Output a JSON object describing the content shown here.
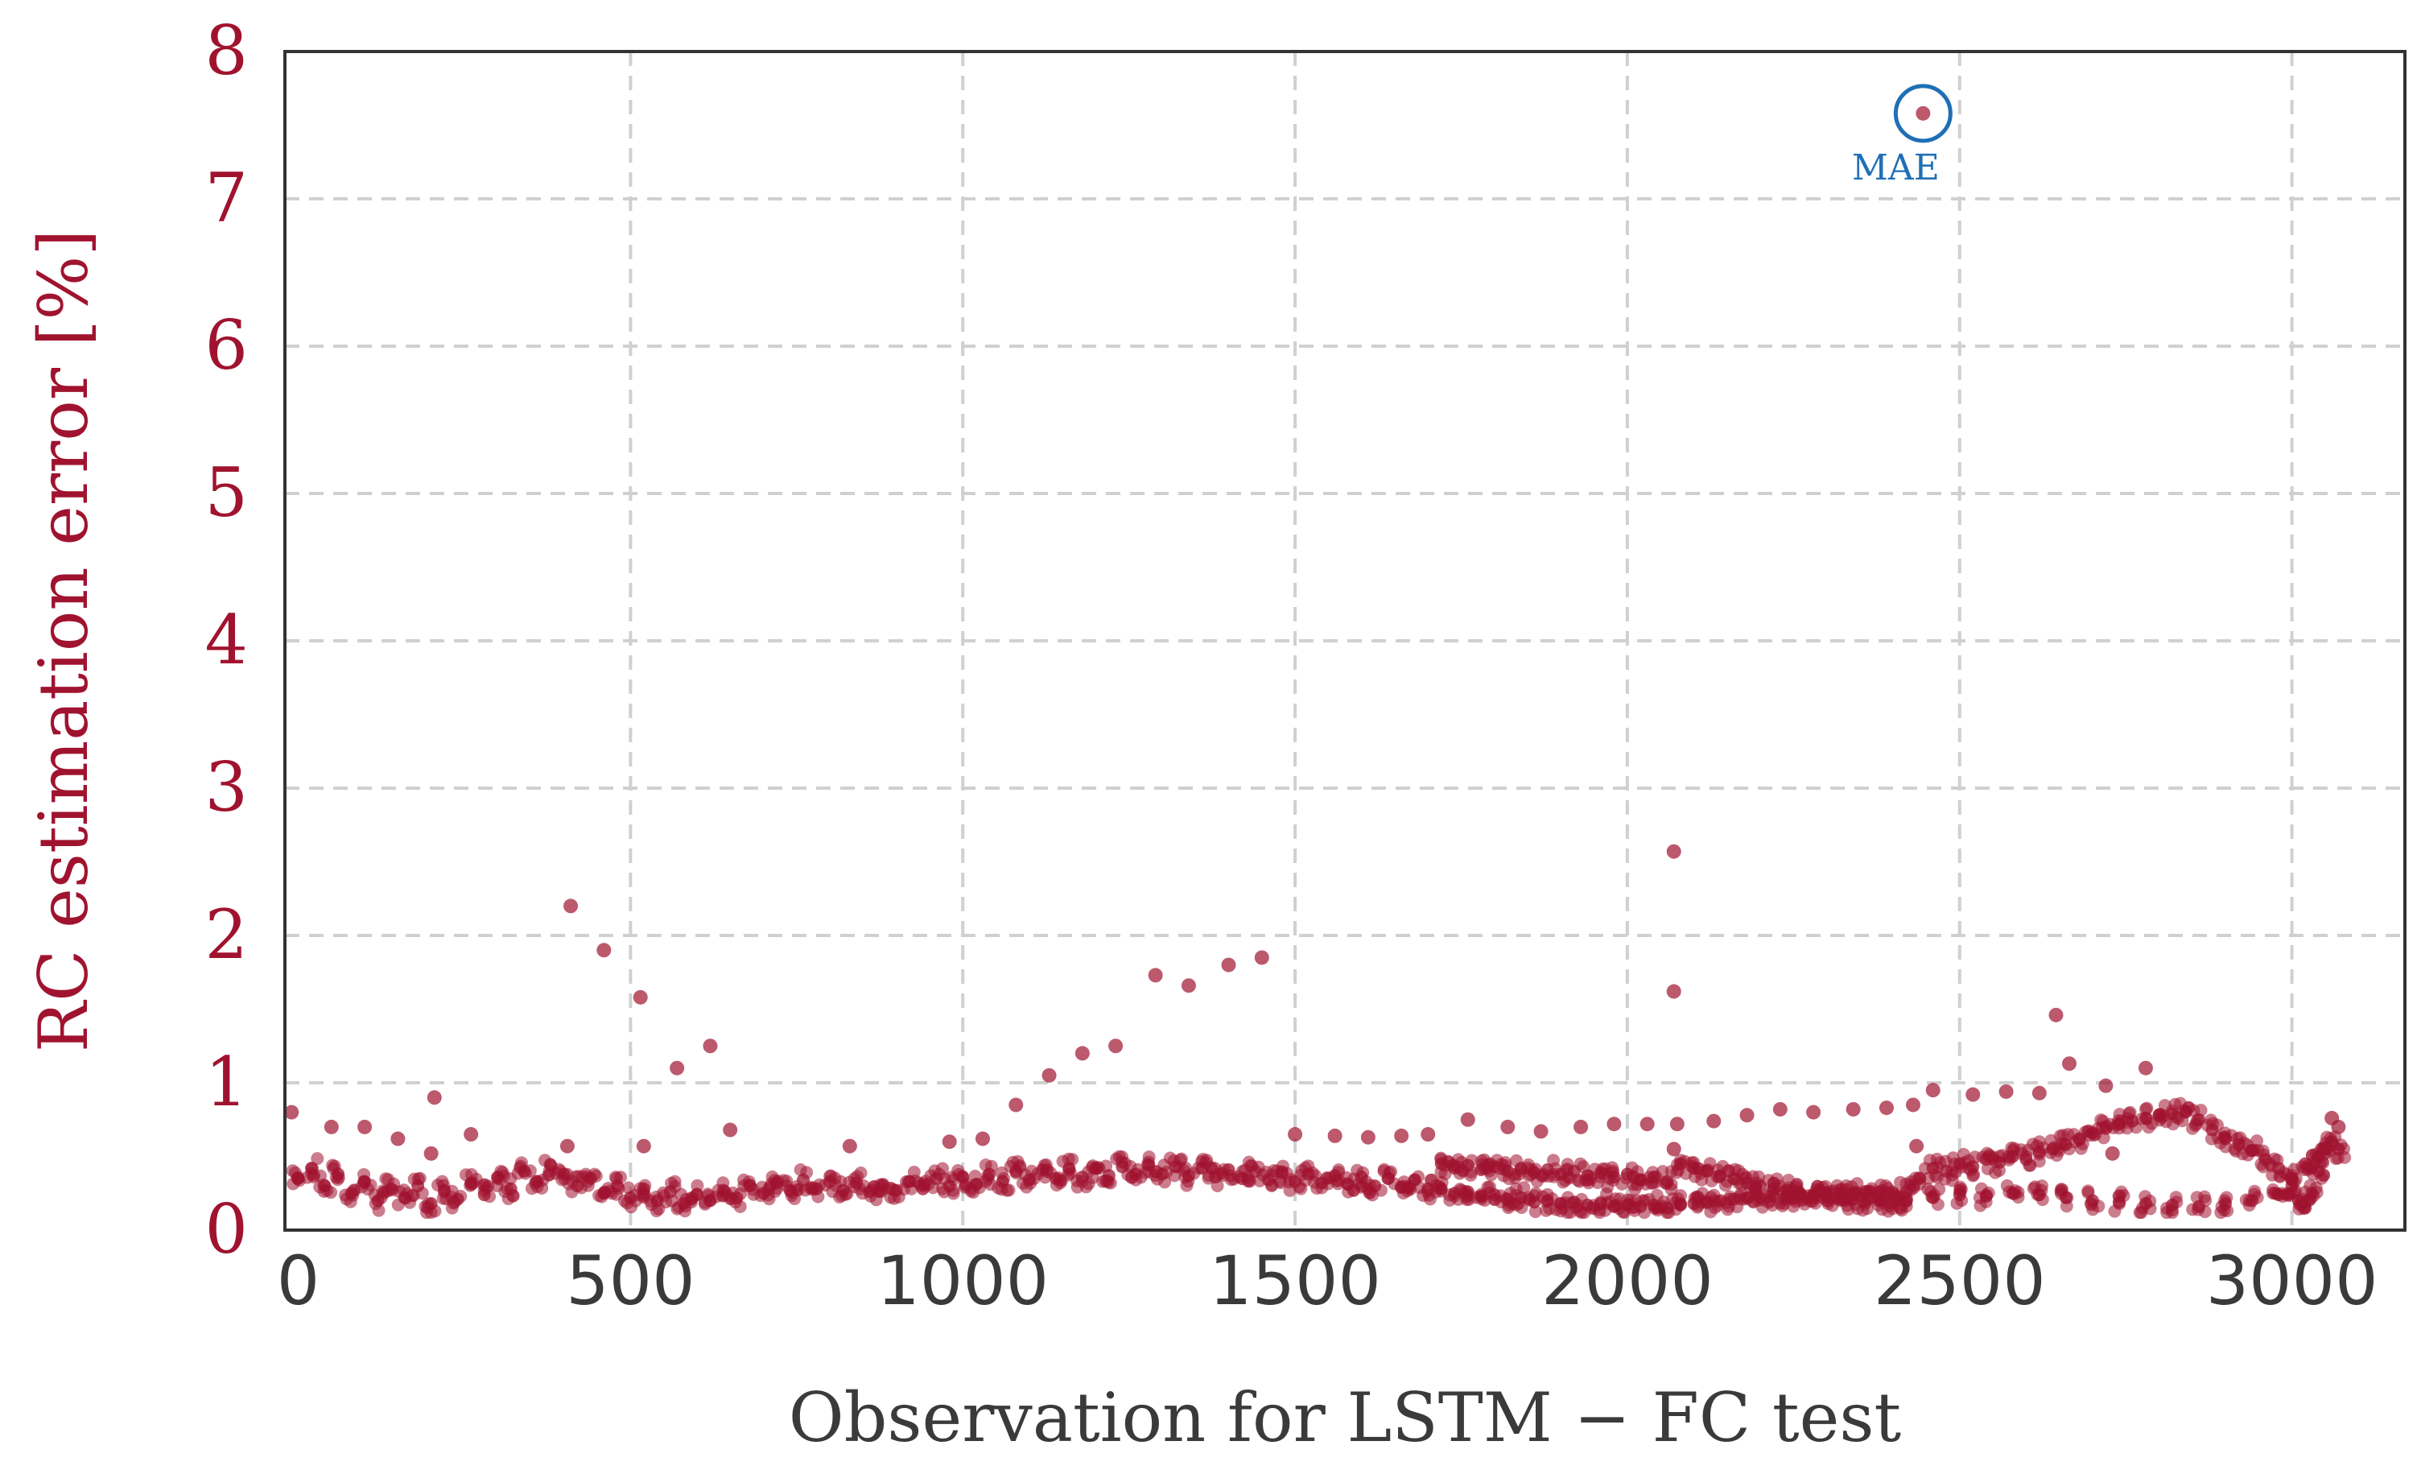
{
  "chart_data": {
    "type": "scatter",
    "title": "",
    "xlabel": "Observation for LSTM − FC test",
    "ylabel": "RC estimation error [%]",
    "xlim": [
      -20,
      3170
    ],
    "ylim": [
      0,
      8
    ],
    "xticks": [
      0,
      500,
      1000,
      1500,
      2000,
      2500,
      3000
    ],
    "yticks": [
      0,
      1,
      2,
      3,
      4,
      5,
      6,
      7,
      8
    ],
    "grid": true,
    "colors": {
      "points": "#a0132f",
      "axis_text_y": "#a0132f",
      "axis_text_x": "#3a3a3a",
      "annotation": "#1f6fb5",
      "grid": "#d0d0d0",
      "frame": "#333333"
    },
    "annotation": {
      "text": "MAE",
      "x": 2445,
      "y": 7.58
    },
    "series": [
      {
        "band_points": [
          [
            0,
            0.35
          ],
          [
            20,
            0.42
          ],
          [
            40,
            0.3
          ],
          [
            60,
            0.38
          ],
          [
            80,
            0.25
          ],
          [
            100,
            0.33
          ],
          [
            120,
            0.2
          ],
          [
            140,
            0.28
          ],
          [
            160,
            0.22
          ],
          [
            180,
            0.3
          ],
          [
            200,
            0.18
          ],
          [
            220,
            0.27
          ],
          [
            240,
            0.21
          ],
          [
            260,
            0.32
          ],
          [
            280,
            0.24
          ],
          [
            300,
            0.36
          ],
          [
            320,
            0.28
          ],
          [
            340,
            0.4
          ],
          [
            360,
            0.33
          ],
          [
            380,
            0.44
          ],
          [
            400,
            0.38
          ],
          [
            420,
            0.3
          ],
          [
            440,
            0.35
          ],
          [
            460,
            0.25
          ],
          [
            480,
            0.3
          ],
          [
            500,
            0.22
          ],
          [
            520,
            0.28
          ],
          [
            540,
            0.2
          ],
          [
            560,
            0.26
          ],
          [
            580,
            0.18
          ],
          [
            600,
            0.24
          ],
          [
            620,
            0.2
          ],
          [
            640,
            0.27
          ],
          [
            660,
            0.22
          ],
          [
            680,
            0.3
          ],
          [
            700,
            0.25
          ],
          [
            720,
            0.32
          ],
          [
            740,
            0.27
          ],
          [
            760,
            0.34
          ],
          [
            780,
            0.28
          ],
          [
            800,
            0.33
          ],
          [
            820,
            0.27
          ],
          [
            840,
            0.32
          ],
          [
            860,
            0.26
          ],
          [
            880,
            0.31
          ],
          [
            900,
            0.27
          ],
          [
            920,
            0.33
          ],
          [
            940,
            0.28
          ],
          [
            960,
            0.35
          ],
          [
            980,
            0.3
          ],
          [
            1000,
            0.36
          ],
          [
            1020,
            0.31
          ],
          [
            1040,
            0.38
          ],
          [
            1060,
            0.33
          ],
          [
            1080,
            0.4
          ],
          [
            1100,
            0.34
          ],
          [
            1120,
            0.41
          ],
          [
            1140,
            0.35
          ],
          [
            1160,
            0.42
          ],
          [
            1180,
            0.36
          ],
          [
            1200,
            0.42
          ],
          [
            1220,
            0.37
          ],
          [
            1240,
            0.43
          ],
          [
            1260,
            0.38
          ],
          [
            1280,
            0.44
          ],
          [
            1300,
            0.38
          ],
          [
            1320,
            0.43
          ],
          [
            1340,
            0.37
          ],
          [
            1360,
            0.42
          ],
          [
            1380,
            0.36
          ],
          [
            1400,
            0.41
          ],
          [
            1420,
            0.35
          ],
          [
            1440,
            0.4
          ],
          [
            1460,
            0.34
          ],
          [
            1480,
            0.39
          ],
          [
            1500,
            0.33
          ],
          [
            1520,
            0.38
          ],
          [
            1540,
            0.32
          ],
          [
            1560,
            0.37
          ],
          [
            1580,
            0.31
          ],
          [
            1600,
            0.36
          ],
          [
            1620,
            0.3
          ],
          [
            1640,
            0.35
          ],
          [
            1660,
            0.29
          ],
          [
            1680,
            0.34
          ],
          [
            1700,
            0.28
          ],
          [
            1720,
            0.45
          ],
          [
            1740,
            0.42
          ],
          [
            1760,
            0.44
          ],
          [
            1780,
            0.41
          ],
          [
            1800,
            0.43
          ],
          [
            1820,
            0.4
          ],
          [
            1840,
            0.42
          ],
          [
            1860,
            0.39
          ],
          [
            1880,
            0.41
          ],
          [
            1900,
            0.38
          ],
          [
            1920,
            0.4
          ],
          [
            1940,
            0.37
          ],
          [
            1960,
            0.39
          ],
          [
            1980,
            0.36
          ],
          [
            2000,
            0.38
          ],
          [
            2020,
            0.34
          ],
          [
            2040,
            0.36
          ],
          [
            2060,
            0.33
          ],
          [
            1720,
            0.28
          ],
          [
            1740,
            0.25
          ],
          [
            1760,
            0.26
          ],
          [
            1780,
            0.23
          ],
          [
            1800,
            0.24
          ],
          [
            1820,
            0.21
          ],
          [
            1840,
            0.22
          ],
          [
            1860,
            0.19
          ],
          [
            1880,
            0.2
          ],
          [
            1900,
            0.18
          ],
          [
            1920,
            0.19
          ],
          [
            1940,
            0.17
          ],
          [
            1960,
            0.18
          ],
          [
            1980,
            0.16
          ],
          [
            2000,
            0.17
          ],
          [
            2020,
            0.16
          ],
          [
            2040,
            0.17
          ],
          [
            2060,
            0.15
          ],
          [
            2080,
            0.45
          ],
          [
            2100,
            0.42
          ],
          [
            2120,
            0.4
          ],
          [
            2140,
            0.37
          ],
          [
            2160,
            0.35
          ],
          [
            2180,
            0.32
          ],
          [
            2200,
            0.3
          ],
          [
            2220,
            0.28
          ],
          [
            2240,
            0.27
          ],
          [
            2260,
            0.25
          ],
          [
            2280,
            0.24
          ],
          [
            2300,
            0.23
          ],
          [
            2320,
            0.22
          ],
          [
            2340,
            0.21
          ],
          [
            2360,
            0.2
          ],
          [
            2380,
            0.2
          ],
          [
            2400,
            0.19
          ],
          [
            2420,
            0.2
          ],
          [
            2080,
            0.17
          ],
          [
            2100,
            0.18
          ],
          [
            2120,
            0.19
          ],
          [
            2140,
            0.2
          ],
          [
            2160,
            0.21
          ],
          [
            2180,
            0.22
          ],
          [
            2200,
            0.22
          ],
          [
            2220,
            0.23
          ],
          [
            2240,
            0.23
          ],
          [
            2260,
            0.24
          ],
          [
            2280,
            0.24
          ],
          [
            2300,
            0.25
          ],
          [
            2320,
            0.25
          ],
          [
            2340,
            0.25
          ],
          [
            2360,
            0.26
          ],
          [
            2380,
            0.26
          ],
          [
            2400,
            0.25
          ],
          [
            2420,
            0.26
          ],
          [
            2440,
            0.35
          ],
          [
            2460,
            0.42
          ],
          [
            2480,
            0.4
          ],
          [
            2500,
            0.45
          ],
          [
            2520,
            0.43
          ],
          [
            2540,
            0.48
          ],
          [
            2560,
            0.46
          ],
          [
            2580,
            0.5
          ],
          [
            2600,
            0.48
          ],
          [
            2620,
            0.53
          ],
          [
            2640,
            0.55
          ],
          [
            2660,
            0.58
          ],
          [
            2680,
            0.62
          ],
          [
            2700,
            0.66
          ],
          [
            2720,
            0.69
          ],
          [
            2740,
            0.72
          ],
          [
            2760,
            0.74
          ],
          [
            2780,
            0.76
          ],
          [
            2800,
            0.78
          ],
          [
            2820,
            0.79
          ],
          [
            2840,
            0.8
          ],
          [
            2860,
            0.75
          ],
          [
            2880,
            0.68
          ],
          [
            2900,
            0.62
          ],
          [
            2920,
            0.58
          ],
          [
            2940,
            0.54
          ],
          [
            2960,
            0.48
          ],
          [
            2980,
            0.42
          ],
          [
            3000,
            0.35
          ],
          [
            2460,
            0.22
          ],
          [
            2500,
            0.24
          ],
          [
            2540,
            0.23
          ],
          [
            2580,
            0.25
          ],
          [
            2620,
            0.24
          ],
          [
            2660,
            0.22
          ],
          [
            2700,
            0.2
          ],
          [
            2740,
            0.19
          ],
          [
            2780,
            0.18
          ],
          [
            2820,
            0.17
          ],
          [
            2860,
            0.16
          ],
          [
            2900,
            0.18
          ],
          [
            2940,
            0.2
          ],
          [
            2980,
            0.24
          ],
          [
            3000,
            0.3
          ],
          [
            3010,
            0.2
          ],
          [
            3020,
            0.15
          ],
          [
            3030,
            0.25
          ],
          [
            3040,
            0.4
          ],
          [
            3050,
            0.52
          ],
          [
            3060,
            0.6
          ],
          [
            3070,
            0.55
          ],
          [
            3020,
            0.45
          ],
          [
            3040,
            0.5
          ]
        ],
        "outliers": [
          [
            -10,
            0.8
          ],
          [
            50,
            0.7
          ],
          [
            100,
            0.7
          ],
          [
            150,
            0.62
          ],
          [
            200,
            0.52
          ],
          [
            205,
            0.9
          ],
          [
            260,
            0.65
          ],
          [
            410,
            2.2
          ],
          [
            405,
            0.57
          ],
          [
            460,
            1.9
          ],
          [
            515,
            1.58
          ],
          [
            520,
            0.57
          ],
          [
            570,
            1.1
          ],
          [
            620,
            1.25
          ],
          [
            650,
            0.68
          ],
          [
            830,
            0.57
          ],
          [
            980,
            0.6
          ],
          [
            1030,
            0.62
          ],
          [
            1080,
            0.85
          ],
          [
            1130,
            1.05
          ],
          [
            1180,
            1.2
          ],
          [
            1230,
            1.25
          ],
          [
            1290,
            1.73
          ],
          [
            1340,
            1.66
          ],
          [
            1400,
            1.8
          ],
          [
            1450,
            1.85
          ],
          [
            1500,
            0.65
          ],
          [
            1560,
            0.64
          ],
          [
            1610,
            0.63
          ],
          [
            1660,
            0.64
          ],
          [
            1700,
            0.65
          ],
          [
            1760,
            0.75
          ],
          [
            1820,
            0.7
          ],
          [
            1870,
            0.67
          ],
          [
            1930,
            0.7
          ],
          [
            1980,
            0.72
          ],
          [
            2030,
            0.72
          ],
          [
            2070,
            2.57
          ],
          [
            2070,
            1.62
          ],
          [
            2075,
            0.72
          ],
          [
            2070,
            0.55
          ],
          [
            2130,
            0.74
          ],
          [
            2180,
            0.78
          ],
          [
            2230,
            0.82
          ],
          [
            2280,
            0.8
          ],
          [
            2340,
            0.82
          ],
          [
            2390,
            0.83
          ],
          [
            2430,
            0.85
          ],
          [
            2435,
            0.57
          ],
          [
            2445,
            7.58
          ],
          [
            2460,
            0.95
          ],
          [
            2520,
            0.92
          ],
          [
            2570,
            0.94
          ],
          [
            2620,
            0.93
          ],
          [
            2645,
            1.46
          ],
          [
            2665,
            1.13
          ],
          [
            2720,
            0.98
          ],
          [
            2730,
            0.52
          ],
          [
            2780,
            1.1
          ],
          [
            3060,
            0.76
          ],
          [
            3070,
            0.7
          ]
        ]
      }
    ]
  }
}
